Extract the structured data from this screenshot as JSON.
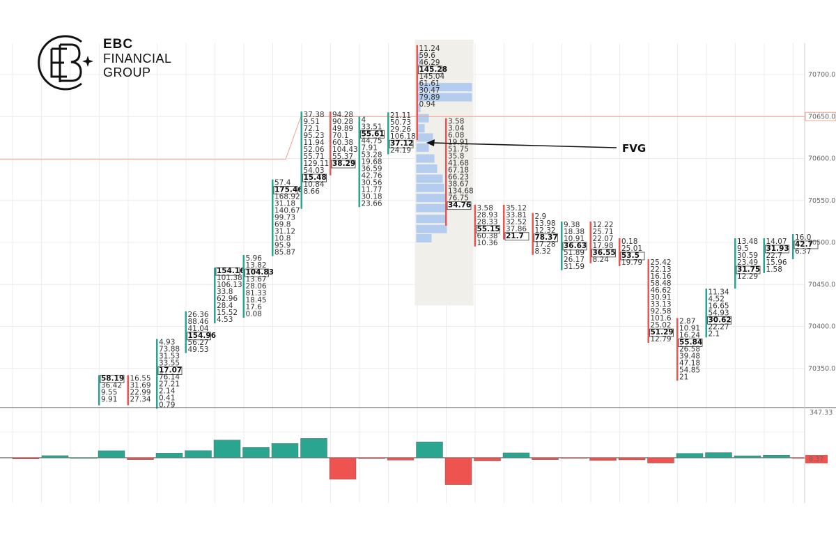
{
  "brand": {
    "line1": "EBC",
    "line2": "FINANCIAL",
    "line3": "GROUP"
  },
  "annotation": {
    "label": "FVG"
  },
  "colors": {
    "up": "#2aa58f",
    "down": "#ef5350",
    "gridline": "#ececec",
    "fvg_zone": "#f0efea",
    "profile": "#a9c7ef",
    "hline": "#f0a090"
  },
  "chart_data": {
    "type": "footprint",
    "price_axis": {
      "ticks": [
        70700,
        70650,
        70600,
        70550,
        70500,
        70450,
        70400,
        70350
      ],
      "tick_labels": [
        "70700.0",
        "70650.0",
        "70600.0",
        "70550.0",
        "70500.0",
        "70450.0",
        "70400.0",
        "70350.0"
      ],
      "range": [
        70310,
        70752
      ],
      "current_price_label": "70650.0"
    },
    "volume_axis": {
      "max_label": "347.33",
      "current_label": "8.37",
      "range": [
        -120,
        347.33
      ]
    },
    "horizontal_line": {
      "price": 70650
    },
    "fvg_zone": {
      "price_top": 70735,
      "price_bottom": 70425
    },
    "bars": [
      {
        "dir": "up",
        "high": 70342,
        "low": 70306,
        "poc": 0,
        "cells": [
          "58.19",
          "36.42",
          "9.55",
          "9.91"
        ],
        "volume": 53
      },
      {
        "dir": "down",
        "high": 70342,
        "low": 70306,
        "poc": -1,
        "cells": [
          "16.55",
          "31.69",
          "22.99",
          "27.34"
        ],
        "volume": -14
      },
      {
        "dir": "up",
        "high": 70385,
        "low": 70306,
        "poc": 4,
        "cells": [
          "4.93",
          "73.88",
          "31.53",
          "33.55",
          "17.07",
          "76.14",
          "27.21",
          "2.14",
          "0.41",
          "0.79"
        ],
        "volume": 35
      },
      {
        "dir": "up",
        "high": 70418,
        "low": 70386,
        "poc": 3,
        "cells": [
          "26.36",
          "88.46",
          "41.04",
          "154.96",
          "56.27",
          "49.53"
        ],
        "volume": 54
      },
      {
        "dir": "up",
        "high": 70470,
        "low": 70422,
        "poc": 0,
        "cells": [
          "154.16",
          "101.38",
          "106.13",
          "33.8",
          "62.96",
          "28.4",
          "15.52",
          "4.53"
        ],
        "volume": 134
      },
      {
        "dir": "up",
        "high": 70485,
        "low": 70422,
        "poc": 2,
        "cells": [
          "5.96",
          "13.82",
          "104.83",
          "13.67",
          "28.06",
          "81.33",
          "18.45",
          "17.6",
          "0.08"
        ],
        "volume": 78
      },
      {
        "dir": "up",
        "high": 70575,
        "low": 70490,
        "poc": 1,
        "cells": [
          "57.4",
          "175.46",
          "168.92",
          "31.18",
          "140.67",
          "99.73",
          "69.8",
          "31.12",
          "10.8",
          "95.9",
          "85.87"
        ],
        "volume": 108
      },
      {
        "dir": "up",
        "high": 70656,
        "low": 70540,
        "poc": 9,
        "cells": [
          "37.38",
          "9.51",
          "72.1",
          "95.23",
          "11.94",
          "52.06",
          "55.71",
          "129.11",
          "54.03",
          "15.48",
          "10.84",
          "8.66"
        ],
        "volume": 146
      },
      {
        "dir": "down",
        "high": 70656,
        "low": 70580,
        "poc": 7,
        "cells": [
          "94.28",
          "90.28",
          "49.89",
          "70.1",
          "60.38",
          "104.43",
          "55.37",
          "38.29"
        ],
        "volume": -163
      },
      {
        "dir": "up",
        "high": 70650,
        "low": 70565,
        "poc": 2,
        "cells": [
          "4",
          "33.51",
          "55.61",
          "44.75",
          "7.91",
          "53.28",
          "19.68",
          "36.59",
          "42.76",
          "30.56",
          "11.77",
          "30.18",
          "23.66"
        ],
        "volume": -7
      },
      {
        "dir": "up",
        "high": 70655,
        "low": 70605,
        "poc": 4,
        "cells": [
          "21.11",
          "50.73",
          "29.26",
          "106.18",
          "37.12",
          "24.19"
        ],
        "volume": -18
      },
      {
        "dir": "down",
        "high": 70735,
        "low": 70622,
        "poc": 3,
        "cells": [
          "11.24",
          "59.6",
          "46.29",
          "145.28",
          "145.04",
          "61.61",
          "30.47",
          "79.89",
          "0.94"
        ],
        "volume": 120
      },
      {
        "dir": "down",
        "high": 70648,
        "low": 70520,
        "poc": 12,
        "cells": [
          "3.58",
          "3.04",
          "6.08",
          "19.91",
          "51.75",
          "35.8",
          "41.68",
          "67.18",
          "66.23",
          "38.67",
          "134.68",
          "76.75",
          "34.76"
        ],
        "volume": -203
      },
      {
        "dir": "down",
        "high": 70545,
        "low": 70510,
        "poc": 3,
        "cells": [
          "3.58",
          "28.93",
          "28.33",
          "55.15",
          "60.38",
          "10.36"
        ],
        "volume": -24
      },
      {
        "dir": "down",
        "high": 70545,
        "low": 70510,
        "poc": 4,
        "cells": [
          "35.12",
          "33.81",
          "32.52",
          "37.86",
          "21.7"
        ],
        "volume": 37
      },
      {
        "dir": "down",
        "high": 70535,
        "low": 70503,
        "poc": 3,
        "cells": [
          "2.9",
          "13.98",
          "12.32",
          "78.37",
          "17.28",
          "8.32"
        ],
        "volume": -14
      },
      {
        "dir": "up",
        "high": 70525,
        "low": 70485,
        "poc": 3,
        "cells": [
          "9.38",
          "18.38",
          "10.91",
          "36.63",
          "51.89",
          "26.17",
          "31.59"
        ],
        "volume": -4
      },
      {
        "dir": "down",
        "high": 70525,
        "low": 70495,
        "poc": 4,
        "cells": [
          "12.22",
          "25.71",
          "22.07",
          "17.98",
          "36.55",
          "8.24"
        ],
        "volume": -21
      },
      {
        "dir": "down",
        "high": 70505,
        "low": 70476,
        "poc": 2,
        "cells": [
          "0.18",
          "25.01",
          "53.5",
          "19.79"
        ],
        "volume": -16
      },
      {
        "dir": "down",
        "high": 70480,
        "low": 70394,
        "poc": 10,
        "cells": [
          "25.42",
          "22.13",
          "16.16",
          "58.48",
          "46.62",
          "30.91",
          "33.13",
          "92.58",
          "101.6",
          "25.02",
          "51.29",
          "12.79"
        ],
        "volume": -40
      },
      {
        "dir": "down",
        "high": 70410,
        "low": 70344,
        "poc": 3,
        "cells": [
          "2.87",
          "10.91",
          "16.24",
          "55.84",
          "26.58",
          "39.48",
          "47.18",
          "54.85",
          "21"
        ],
        "volume": 33
      },
      {
        "dir": "up",
        "high": 70445,
        "low": 70393,
        "poc": 4,
        "cells": [
          "11.34",
          "4.52",
          "16.65",
          "54.93",
          "30.62",
          "22.27",
          "2.1"
        ],
        "volume": 39
      },
      {
        "dir": "up",
        "high": 70505,
        "low": 70445,
        "poc": 4,
        "cells": [
          "13.48",
          "9.5",
          "30.59",
          "23.49",
          "31.75",
          "12.29"
        ],
        "volume": 15
      },
      {
        "dir": "up",
        "high": 70505,
        "low": 70475,
        "poc": 1,
        "cells": [
          "14.07",
          "31.93",
          "22.7",
          "15.96",
          "1.58"
        ],
        "volume": 20
      },
      {
        "dir": "up",
        "high": 70510,
        "low": 70480,
        "poc": 1,
        "cells": [
          "16.0",
          "42.7",
          "6.37"
        ],
        "volume": -4
      }
    ]
  }
}
